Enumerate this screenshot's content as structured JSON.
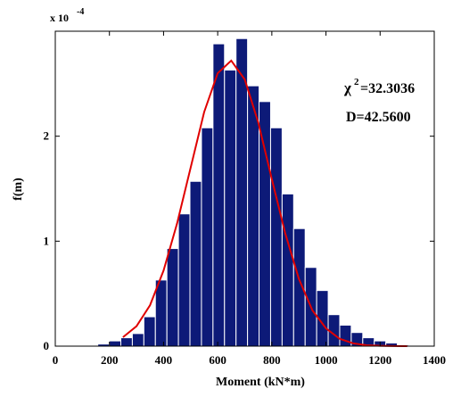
{
  "chart_data": {
    "type": "histogram",
    "x_label": "Moment (kN*m)",
    "y_label": "f(m)",
    "y_multiplier": {
      "base": "x 10",
      "exponent": "-4"
    },
    "annotations": [
      {
        "symbol": "χ",
        "power": "2",
        "text": "=32.3036"
      },
      {
        "text": "D=42.5600"
      }
    ],
    "bins": [
      157,
      199.56,
      242.12,
      284.68,
      327.24,
      369.8,
      412.36,
      454.92,
      497.48,
      540.04,
      582.6,
      625.16,
      667.72,
      710.28,
      752.84,
      795.4,
      837.96,
      880.52,
      923.08,
      965.64,
      1008.2,
      1050.76,
      1093.32,
      1135.88,
      1178.44,
      1221,
      1263.56,
      1306.12
    ],
    "values": [
      0.02,
      0.05,
      0.08,
      0.12,
      0.28,
      0.63,
      0.93,
      1.26,
      1.57,
      2.08,
      2.88,
      2.63,
      2.93,
      2.48,
      2.33,
      2.08,
      1.45,
      1.12,
      0.75,
      0.53,
      0.3,
      0.2,
      0.13,
      0.08,
      0.05,
      0.03,
      0.01
    ],
    "color": "#0d1a78",
    "fit": {
      "x": [
        250,
        300,
        350,
        400,
        450,
        500,
        550,
        600,
        650,
        700,
        750,
        800,
        850,
        900,
        950,
        1000,
        1050,
        1100,
        1150,
        1200,
        1250,
        1300
      ],
      "values": [
        0.085,
        0.19,
        0.39,
        0.72,
        1.17,
        1.7,
        2.23,
        2.6,
        2.72,
        2.54,
        2.13,
        1.59,
        1.07,
        0.64,
        0.34,
        0.17,
        0.071,
        0.027,
        0.009,
        0.003,
        0.001,
        0
      ],
      "color": "#e00000"
    },
    "xlim": [
      0,
      1400
    ],
    "xticks": [
      0,
      200,
      400,
      600,
      800,
      1000,
      1200,
      1400
    ],
    "ylim": [
      0,
      3
    ],
    "yticks": [
      0,
      1,
      2
    ]
  }
}
